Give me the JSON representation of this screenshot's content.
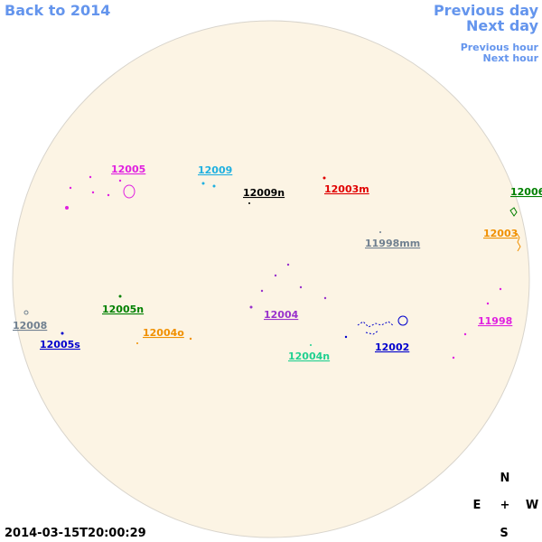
{
  "nav": {
    "back": "Back to 2014",
    "previous_day": "Previous day",
    "next_day": "Next day",
    "previous_hour": "Previous hour",
    "next_hour": "Next hour"
  },
  "regions": [
    "12005",
    "12009",
    "12009n",
    "12003m",
    "12006",
    "12003",
    "11998mm",
    "12005n",
    "12004",
    "11998",
    "12008",
    "12005s",
    "12004o",
    "12002",
    "12004n"
  ],
  "compass": {
    "north": "N",
    "east": "E",
    "center": "+",
    "west": "W",
    "south": "S"
  },
  "timestamp": "2014-03-15T20:00:29"
}
